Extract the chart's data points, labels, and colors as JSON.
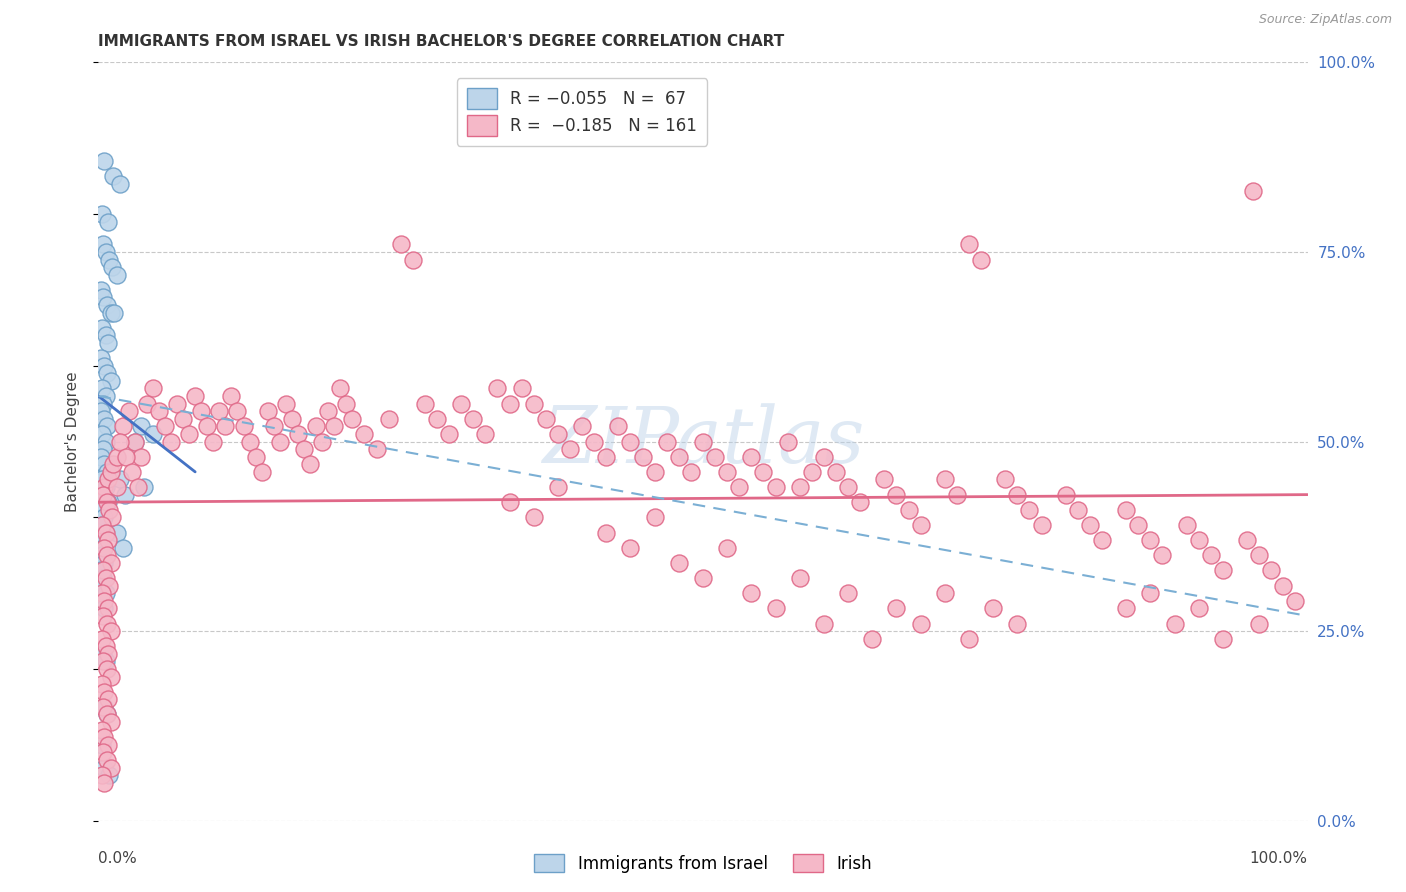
{
  "title": "IMMIGRANTS FROM ISRAEL VS IRISH BACHELOR'S DEGREE CORRELATION CHART",
  "source": "Source: ZipAtlas.com",
  "ylabel": "Bachelor's Degree",
  "legend_label_blue": "Immigrants from Israel",
  "legend_label_pink": "Irish",
  "blue_scatter": [
    [
      0.5,
      87
    ],
    [
      1.2,
      85
    ],
    [
      1.8,
      84
    ],
    [
      0.3,
      80
    ],
    [
      0.8,
      79
    ],
    [
      0.4,
      76
    ],
    [
      0.6,
      75
    ],
    [
      0.9,
      74
    ],
    [
      1.1,
      73
    ],
    [
      1.5,
      72
    ],
    [
      0.2,
      70
    ],
    [
      0.4,
      69
    ],
    [
      0.7,
      68
    ],
    [
      1.0,
      67
    ],
    [
      1.3,
      67
    ],
    [
      0.3,
      65
    ],
    [
      0.6,
      64
    ],
    [
      0.8,
      63
    ],
    [
      0.2,
      61
    ],
    [
      0.5,
      60
    ],
    [
      0.7,
      59
    ],
    [
      1.0,
      58
    ],
    [
      0.3,
      57
    ],
    [
      0.6,
      56
    ],
    [
      0.4,
      55
    ],
    [
      0.2,
      54
    ],
    [
      0.5,
      53
    ],
    [
      0.7,
      52
    ],
    [
      3.5,
      52
    ],
    [
      0.3,
      51
    ],
    [
      0.6,
      50
    ],
    [
      0.4,
      49
    ],
    [
      0.2,
      48
    ],
    [
      0.5,
      47
    ],
    [
      0.7,
      46
    ],
    [
      0.3,
      45
    ],
    [
      0.6,
      44
    ],
    [
      3.8,
      44
    ],
    [
      0.4,
      43
    ],
    [
      0.8,
      42
    ],
    [
      0.2,
      41
    ],
    [
      0.5,
      40
    ],
    [
      0.3,
      39
    ],
    [
      0.6,
      38
    ],
    [
      0.2,
      37
    ],
    [
      0.4,
      36
    ],
    [
      0.3,
      35
    ],
    [
      0.5,
      34
    ],
    [
      0.2,
      33
    ],
    [
      0.4,
      32
    ],
    [
      0.3,
      31
    ],
    [
      0.6,
      30
    ],
    [
      0.5,
      28
    ],
    [
      0.4,
      22
    ],
    [
      0.6,
      21
    ],
    [
      0.5,
      15
    ],
    [
      0.7,
      14
    ],
    [
      0.3,
      10
    ],
    [
      0.5,
      7
    ],
    [
      0.9,
      6
    ],
    [
      3.0,
      50
    ],
    [
      4.5,
      51
    ],
    [
      1.8,
      45
    ],
    [
      2.2,
      43
    ],
    [
      1.5,
      38
    ],
    [
      2.0,
      36
    ]
  ],
  "pink_scatter": [
    [
      0.5,
      44
    ],
    [
      0.8,
      45
    ],
    [
      1.0,
      46
    ],
    [
      1.2,
      47
    ],
    [
      1.5,
      48
    ],
    [
      0.4,
      43
    ],
    [
      0.7,
      42
    ],
    [
      0.9,
      41
    ],
    [
      1.1,
      40
    ],
    [
      0.3,
      39
    ],
    [
      0.6,
      38
    ],
    [
      0.8,
      37
    ],
    [
      0.5,
      36
    ],
    [
      0.7,
      35
    ],
    [
      1.0,
      34
    ],
    [
      0.4,
      33
    ],
    [
      0.6,
      32
    ],
    [
      0.9,
      31
    ],
    [
      0.3,
      30
    ],
    [
      0.5,
      29
    ],
    [
      0.8,
      28
    ],
    [
      0.4,
      27
    ],
    [
      0.7,
      26
    ],
    [
      1.0,
      25
    ],
    [
      0.3,
      24
    ],
    [
      0.6,
      23
    ],
    [
      0.8,
      22
    ],
    [
      0.4,
      21
    ],
    [
      0.7,
      20
    ],
    [
      1.0,
      19
    ],
    [
      0.3,
      18
    ],
    [
      0.5,
      17
    ],
    [
      0.8,
      16
    ],
    [
      0.4,
      15
    ],
    [
      0.7,
      14
    ],
    [
      1.0,
      13
    ],
    [
      0.3,
      12
    ],
    [
      0.5,
      11
    ],
    [
      0.8,
      10
    ],
    [
      0.4,
      9
    ],
    [
      0.7,
      8
    ],
    [
      1.0,
      7
    ],
    [
      0.3,
      6
    ],
    [
      0.5,
      5
    ],
    [
      1.5,
      44
    ],
    [
      2.0,
      52
    ],
    [
      2.5,
      54
    ],
    [
      3.0,
      50
    ],
    [
      3.5,
      48
    ],
    [
      4.0,
      55
    ],
    [
      4.5,
      57
    ],
    [
      5.0,
      54
    ],
    [
      5.5,
      52
    ],
    [
      6.0,
      50
    ],
    [
      6.5,
      55
    ],
    [
      7.0,
      53
    ],
    [
      7.5,
      51
    ],
    [
      8.0,
      56
    ],
    [
      8.5,
      54
    ],
    [
      9.0,
      52
    ],
    [
      9.5,
      50
    ],
    [
      10.0,
      54
    ],
    [
      10.5,
      52
    ],
    [
      11.0,
      56
    ],
    [
      11.5,
      54
    ],
    [
      12.0,
      52
    ],
    [
      12.5,
      50
    ],
    [
      13.0,
      48
    ],
    [
      13.5,
      46
    ],
    [
      14.0,
      54
    ],
    [
      14.5,
      52
    ],
    [
      15.0,
      50
    ],
    [
      15.5,
      55
    ],
    [
      16.0,
      53
    ],
    [
      16.5,
      51
    ],
    [
      17.0,
      49
    ],
    [
      17.5,
      47
    ],
    [
      18.0,
      52
    ],
    [
      18.5,
      50
    ],
    [
      19.0,
      54
    ],
    [
      19.5,
      52
    ],
    [
      20.0,
      57
    ],
    [
      20.5,
      55
    ],
    [
      21.0,
      53
    ],
    [
      22.0,
      51
    ],
    [
      23.0,
      49
    ],
    [
      24.0,
      53
    ],
    [
      25.0,
      76
    ],
    [
      26.0,
      74
    ],
    [
      27.0,
      55
    ],
    [
      28.0,
      53
    ],
    [
      29.0,
      51
    ],
    [
      30.0,
      55
    ],
    [
      31.0,
      53
    ],
    [
      32.0,
      51
    ],
    [
      33.0,
      57
    ],
    [
      34.0,
      55
    ],
    [
      35.0,
      57
    ],
    [
      36.0,
      55
    ],
    [
      37.0,
      53
    ],
    [
      38.0,
      51
    ],
    [
      39.0,
      49
    ],
    [
      40.0,
      52
    ],
    [
      41.0,
      50
    ],
    [
      42.0,
      48
    ],
    [
      43.0,
      52
    ],
    [
      44.0,
      50
    ],
    [
      45.0,
      48
    ],
    [
      46.0,
      46
    ],
    [
      47.0,
      50
    ],
    [
      48.0,
      48
    ],
    [
      49.0,
      46
    ],
    [
      50.0,
      50
    ],
    [
      51.0,
      48
    ],
    [
      52.0,
      46
    ],
    [
      53.0,
      44
    ],
    [
      54.0,
      48
    ],
    [
      55.0,
      46
    ],
    [
      56.0,
      44
    ],
    [
      57.0,
      50
    ],
    [
      58.0,
      44
    ],
    [
      59.0,
      46
    ],
    [
      60.0,
      48
    ],
    [
      61.0,
      46
    ],
    [
      62.0,
      44
    ],
    [
      63.0,
      42
    ],
    [
      65.0,
      45
    ],
    [
      66.0,
      43
    ],
    [
      67.0,
      41
    ],
    [
      68.0,
      39
    ],
    [
      70.0,
      45
    ],
    [
      71.0,
      43
    ],
    [
      72.0,
      76
    ],
    [
      73.0,
      74
    ],
    [
      75.0,
      45
    ],
    [
      76.0,
      43
    ],
    [
      77.0,
      41
    ],
    [
      78.0,
      39
    ],
    [
      80.0,
      43
    ],
    [
      81.0,
      41
    ],
    [
      82.0,
      39
    ],
    [
      83.0,
      37
    ],
    [
      85.0,
      41
    ],
    [
      86.0,
      39
    ],
    [
      87.0,
      37
    ],
    [
      88.0,
      35
    ],
    [
      90.0,
      39
    ],
    [
      91.0,
      37
    ],
    [
      92.0,
      35
    ],
    [
      93.0,
      33
    ],
    [
      95.0,
      37
    ],
    [
      96.0,
      35
    ],
    [
      97.0,
      33
    ],
    [
      98.0,
      31
    ],
    [
      99.0,
      29
    ],
    [
      95.5,
      83
    ],
    [
      34.0,
      42
    ],
    [
      36.0,
      40
    ],
    [
      38.0,
      44
    ],
    [
      42.0,
      38
    ],
    [
      44.0,
      36
    ],
    [
      46.0,
      40
    ],
    [
      48.0,
      34
    ],
    [
      50.0,
      32
    ],
    [
      52.0,
      36
    ],
    [
      54.0,
      30
    ],
    [
      56.0,
      28
    ],
    [
      58.0,
      32
    ],
    [
      60.0,
      26
    ],
    [
      62.0,
      30
    ],
    [
      64.0,
      24
    ],
    [
      66.0,
      28
    ],
    [
      68.0,
      26
    ],
    [
      70.0,
      30
    ],
    [
      72.0,
      24
    ],
    [
      74.0,
      28
    ],
    [
      76.0,
      26
    ],
    [
      85.0,
      28
    ],
    [
      87.0,
      30
    ],
    [
      89.0,
      26
    ],
    [
      91.0,
      28
    ],
    [
      93.0,
      24
    ],
    [
      96.0,
      26
    ],
    [
      1.8,
      50
    ],
    [
      2.3,
      48
    ],
    [
      2.8,
      46
    ],
    [
      3.3,
      44
    ]
  ],
  "blue_trend_x": [
    0,
    8
  ],
  "blue_trend_y": [
    56,
    46
  ],
  "pink_trend_x": [
    0,
    100
  ],
  "pink_trend_y": [
    42,
    43
  ],
  "dashed_trend_x": [
    0,
    100
  ],
  "dashed_trend_y": [
    56,
    27
  ],
  "xmin": 0,
  "xmax": 100,
  "ymin": 0,
  "ymax": 100,
  "ytick_pcts": [
    0,
    25,
    50,
    75,
    100
  ],
  "ytick_labels_right": [
    "0.0%",
    "25.0%",
    "50.0%",
    "75.0%",
    "100.0%"
  ],
  "grid_color": "#c8c8c8",
  "blue_dot_face": "#bdd5ea",
  "blue_dot_edge": "#6da0c8",
  "pink_dot_face": "#f5b8c8",
  "pink_dot_edge": "#e06888",
  "trend_blue_color": "#4472c4",
  "trend_pink_color": "#e06888",
  "trend_dashed_color": "#7bafd4",
  "background": "#ffffff",
  "title_fontsize": 11,
  "ylabel_fontsize": 11,
  "tick_label_fontsize": 11,
  "legend_fontsize": 12,
  "source_text": "Source: ZipAtlas.com"
}
